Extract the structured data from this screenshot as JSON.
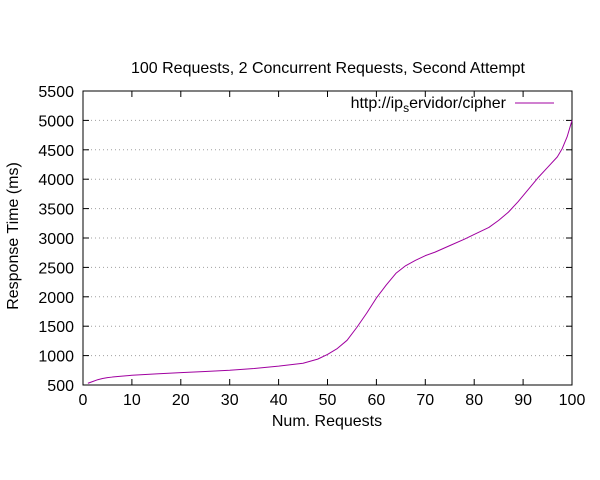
{
  "chart_data": {
    "type": "line",
    "title": "100 Requests, 2 Concurrent Requests, Second Attempt",
    "xlabel": "Num. Requests",
    "ylabel": "Response Time (ms)",
    "xlim": [
      0,
      100
    ],
    "ylim": [
      500,
      5500
    ],
    "xticks": [
      "0",
      "10",
      "20",
      "30",
      "40",
      "50",
      "60",
      "70",
      "80",
      "90",
      "100"
    ],
    "yticks": [
      "500",
      "1000",
      "1500",
      "2000",
      "2500",
      "3000",
      "3500",
      "4000",
      "4500",
      "5000",
      "5500"
    ],
    "grid": "horizontal dotted",
    "legend_position": "top-right",
    "legend_label_prefix": "http://ip",
    "legend_label_subscript": "s",
    "legend_label_suffix": "ervidor/cipher",
    "series": [
      {
        "name": "http://ip_servidor/cipher",
        "color": "#a000a0",
        "x": [
          1,
          2,
          3,
          4,
          5,
          6,
          8,
          10,
          15,
          20,
          25,
          30,
          35,
          40,
          45,
          48,
          50,
          52,
          54,
          56,
          58,
          60,
          62,
          64,
          66,
          68,
          70,
          72,
          75,
          78,
          80,
          83,
          85,
          87,
          89,
          91,
          93,
          95,
          97,
          98,
          99,
          100
        ],
        "y": [
          530,
          560,
          590,
          610,
          625,
          635,
          650,
          665,
          690,
          710,
          730,
          750,
          780,
          820,
          870,
          940,
          1020,
          1120,
          1260,
          1480,
          1720,
          1980,
          2200,
          2400,
          2530,
          2620,
          2700,
          2760,
          2870,
          2980,
          3060,
          3180,
          3300,
          3440,
          3620,
          3820,
          4020,
          4200,
          4380,
          4520,
          4720,
          5000
        ]
      }
    ]
  }
}
